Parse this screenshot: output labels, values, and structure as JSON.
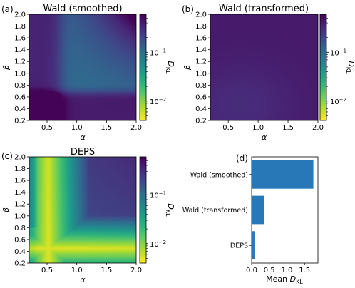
{
  "colors": {
    "viridis": [
      "#440154",
      "#482878",
      "#3e4989",
      "#31688e",
      "#26828e",
      "#1f9e89",
      "#35b779",
      "#6ece58",
      "#b5de2b",
      "#fde725"
    ],
    "bar": "#2878b8"
  },
  "colorbar": {
    "label_main": "D",
    "label_sub": "KL",
    "ticks": [
      {
        "label": "10",
        "exp": "−1",
        "value": 0.1
      },
      {
        "label": "10",
        "exp": "−2",
        "value": 0.01
      }
    ],
    "range": [
      0.004,
      0.6
    ]
  },
  "heatmap_axes": {
    "xlabel": "α",
    "ylabel": "β",
    "xticks": [
      "0.5",
      "1.0",
      "1.5",
      "2.0"
    ],
    "xtick_values": [
      0.5,
      1.0,
      1.5,
      2.0
    ],
    "yticks": [
      "0.2",
      "0.4",
      "0.6",
      "0.8",
      "1.0",
      "1.2",
      "1.4",
      "1.6",
      "1.8",
      "2.0"
    ],
    "ytick_values": [
      0.2,
      0.4,
      0.6,
      0.8,
      1.0,
      1.2,
      1.4,
      1.6,
      1.8,
      2.0
    ],
    "xlim": [
      0.2,
      2.0
    ],
    "ylim": [
      0.2,
      2.0
    ]
  },
  "chart_data": [
    {
      "type": "heatmap",
      "panel": "(a)",
      "title": "Wald (smoothed)",
      "xlabel": "α",
      "ylabel": "β",
      "xlim": [
        0.2,
        2.0
      ],
      "ylim": [
        0.2,
        2.0
      ],
      "value_scale": "log",
      "colorbar_label": "DKL",
      "pattern": "high (~0.45) near α=2, β=2; dark (~0.4) at low β and low α; mid (~0.1) in central region"
    },
    {
      "type": "heatmap",
      "panel": "(b)",
      "title": "Wald (transformed)",
      "xlabel": "α",
      "ylabel": "β",
      "xlim": [
        0.2,
        2.0
      ],
      "ylim": [
        0.2,
        2.0
      ],
      "value_scale": "log",
      "colorbar_label": "DKL",
      "pattern": "nearly uniform dark, ~0.3–0.4"
    },
    {
      "type": "heatmap",
      "panel": "(c)",
      "title": "DEPS",
      "xlabel": "α",
      "ylabel": "β",
      "xlim": [
        0.2,
        2.0
      ],
      "ylim": [
        0.2,
        2.0
      ],
      "value_scale": "log",
      "colorbar_label": "DKL",
      "pattern": "lowest (~0.005) along curve near α≈0.5 and β≈0.45; rising to ~0.1 at high α and β"
    },
    {
      "type": "bar",
      "panel": "(d)",
      "orientation": "horizontal",
      "categories": [
        "Wald (smoothed)",
        "Wald (transformed)",
        "DEPS"
      ],
      "values": [
        1.75,
        0.35,
        0.1
      ],
      "xlabel": "Mean D_KL",
      "xticks": [
        "0.0",
        "0.5",
        "1.0",
        "1.5"
      ],
      "xlim": [
        0,
        1.88
      ]
    }
  ],
  "panel_labels": [
    "(a)",
    "(b)",
    "(c)",
    "(d)"
  ]
}
